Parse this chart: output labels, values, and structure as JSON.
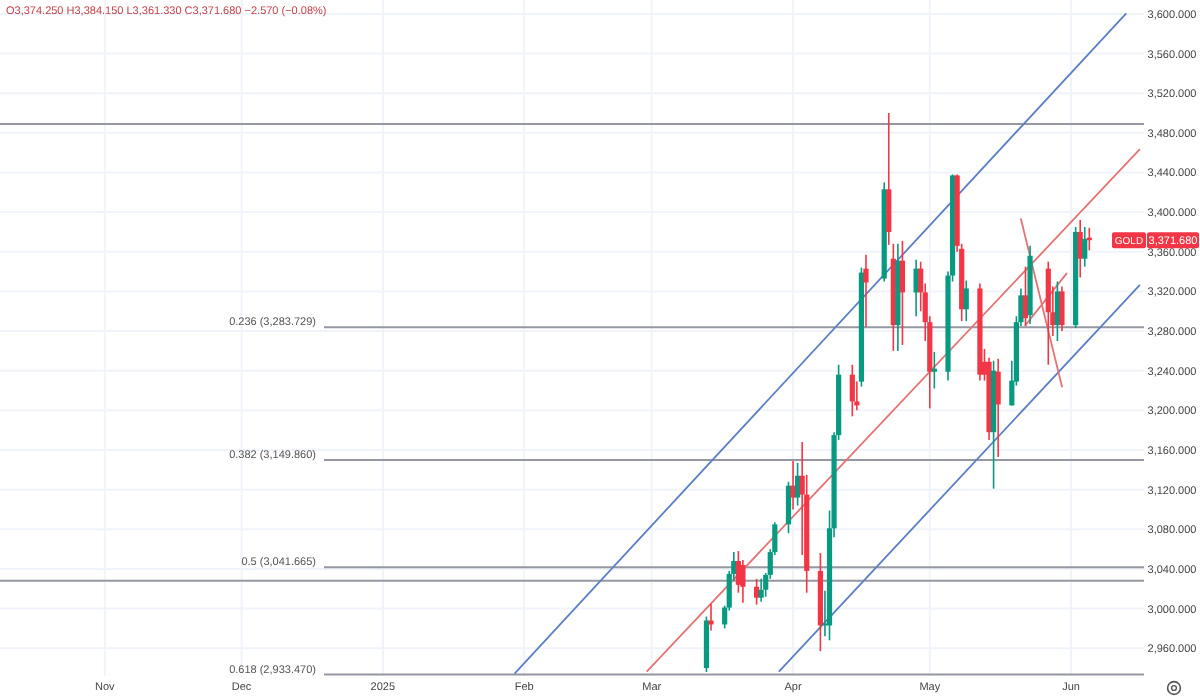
{
  "chart_data": {
    "type": "candlestick",
    "x": [
      "2025-03-13",
      "2025-03-14",
      "2025-03-17",
      "2025-03-18",
      "2025-03-19",
      "2025-03-20",
      "2025-03-21",
      "2025-03-24",
      "2025-03-25",
      "2025-03-26",
      "2025-03-27",
      "2025-03-28",
      "2025-03-31",
      "2025-04-01",
      "2025-04-02",
      "2025-04-03",
      "2025-04-04",
      "2025-04-07",
      "2025-04-08",
      "2025-04-09",
      "2025-04-10",
      "2025-04-11",
      "2025-04-14",
      "2025-04-15",
      "2025-04-16",
      "2025-04-17",
      "2025-04-21",
      "2025-04-22",
      "2025-04-23",
      "2025-04-24",
      "2025-04-25",
      "2025-04-28",
      "2025-04-29",
      "2025-04-30",
      "2025-05-01",
      "2025-05-02",
      "2025-05-05",
      "2025-05-06",
      "2025-05-07",
      "2025-05-08",
      "2025-05-09",
      "2025-05-12",
      "2025-05-13",
      "2025-05-14",
      "2025-05-15",
      "2025-05-16",
      "2025-05-19",
      "2025-05-20",
      "2025-05-21",
      "2025-05-22",
      "2025-05-23",
      "2025-05-27",
      "2025-05-28",
      "2025-05-29",
      "2025-05-30",
      "2025-06-02",
      "2025-06-03",
      "2025-06-04",
      "2025-06-05"
    ],
    "ohlc": [
      [
        2940,
        2992,
        2936,
        2988
      ],
      [
        2988,
        3005,
        2978,
        2984
      ],
      [
        2984,
        3003,
        2980,
        3001
      ],
      [
        3001,
        3038,
        2998,
        3035
      ],
      [
        3035,
        3057,
        3028,
        3048
      ],
      [
        3048,
        3058,
        3016,
        3024
      ],
      [
        3044,
        3049,
        3006,
        3022
      ],
      [
        3022,
        3030,
        3004,
        3011
      ],
      [
        3011,
        3030,
        3007,
        3019
      ],
      [
        3019,
        3036,
        3012,
        3034
      ],
      [
        3034,
        3060,
        3030,
        3057
      ],
      [
        3057,
        3087,
        3054,
        3085
      ],
      [
        3085,
        3128,
        3076,
        3124
      ],
      [
        3124,
        3149,
        3100,
        3112
      ],
      [
        3112,
        3147,
        3104,
        3134
      ],
      [
        3134,
        3168,
        3054,
        3115
      ],
      [
        3115,
        3135,
        3016,
        3038
      ],
      [
        3038,
        3056,
        2957,
        2983
      ],
      [
        2983,
        3018,
        2972,
        2985
      ],
      [
        2983,
        3099,
        2968,
        3081
      ],
      [
        3081,
        3178,
        3072,
        3175
      ],
      [
        3175,
        3246,
        3170,
        3236
      ],
      [
        3236,
        3246,
        3194,
        3209
      ],
      [
        3209,
        3229,
        3200,
        3205
      ],
      [
        3229,
        3344,
        3224,
        3339
      ],
      [
        3343,
        3357,
        3284,
        3329
      ],
      [
        3333,
        3430,
        3330,
        3423
      ],
      [
        3423,
        3500,
        3367,
        3380
      ],
      [
        3353,
        3368,
        3260,
        3286
      ],
      [
        3286,
        3368,
        3260,
        3351
      ],
      [
        3351,
        3371,
        3266,
        3319
      ],
      [
        3319,
        3352,
        3295,
        3343
      ],
      [
        3343,
        3350,
        3300,
        3319
      ],
      [
        3319,
        3328,
        3270,
        3289
      ],
      [
        3289,
        3295,
        3202,
        3239
      ],
      [
        3239,
        3259,
        3222,
        3242
      ],
      [
        3239,
        3340,
        3230,
        3336
      ],
      [
        3336,
        3438,
        3330,
        3437
      ],
      [
        3437,
        3438,
        3360,
        3366
      ],
      [
        3363,
        3368,
        3290,
        3302
      ],
      [
        3302,
        3331,
        3290,
        3323
      ],
      [
        3323,
        3328,
        3230,
        3236
      ],
      [
        3249,
        3262,
        3230,
        3236
      ],
      [
        3249,
        3253,
        3170,
        3178
      ],
      [
        3178,
        3250,
        3121,
        3240
      ],
      [
        3239,
        3252,
        3153,
        3206
      ],
      [
        3205,
        3250,
        3205,
        3230
      ],
      [
        3229,
        3295,
        3225,
        3289
      ],
      [
        3289,
        3323,
        3285,
        3316
      ],
      [
        3316,
        3345,
        3285,
        3293
      ],
      [
        3296,
        3366,
        3287,
        3356
      ],
      [
        3343,
        3350,
        3246,
        3299
      ],
      [
        3299,
        3325,
        3275,
        3286
      ],
      [
        3286,
        3330,
        3270,
        3320
      ],
      [
        3320,
        3325,
        3280,
        3286
      ],
      [
        3286,
        3385,
        3283,
        3380
      ],
      [
        3380,
        3392,
        3334,
        3353
      ],
      [
        3353,
        3385,
        3345,
        3373
      ],
      [
        3374.25,
        3384.15,
        3361.33,
        3371.68
      ]
    ],
    "colors": [
      "#089981",
      "#f23645",
      "#089981",
      "#089981",
      "#089981",
      "#f23645",
      "#f23645",
      "#f23645",
      "#089981",
      "#089981",
      "#089981",
      "#089981",
      "#089981",
      "#f23645",
      "#089981",
      "#f23645",
      "#f23645",
      "#f23645",
      "#089981",
      "#089981",
      "#089981",
      "#089981",
      "#f23645",
      "#f23645",
      "#089981",
      "#f23645",
      "#089981",
      "#f23645",
      "#f23645",
      "#089981",
      "#f23645",
      "#089981",
      "#f23645",
      "#f23645",
      "#f23645",
      "#089981",
      "#089981",
      "#089981",
      "#f23645",
      "#f23645",
      "#089981",
      "#f23645",
      "#f23645",
      "#f23645",
      "#089981",
      "#f23645",
      "#089981",
      "#089981",
      "#089981",
      "#f23645",
      "#089981",
      "#f23645",
      "#f23645",
      "#089981",
      "#f23645",
      "#089981",
      "#f23645",
      "#089981",
      "#f23645"
    ],
    "series": [
      {
        "type": "line",
        "color": "#5b7fc7",
        "x": [
          "2025-01-30",
          "2025-06-13"
        ],
        "values": [
          2935,
          3600
        ]
      },
      {
        "type": "line",
        "color": "#e57373",
        "x": [
          "2025-02-28",
          "2025-06-16"
        ],
        "values": [
          2937,
          3463
        ]
      },
      {
        "type": "line",
        "color": "#5b7fc7",
        "x": [
          "2025-03-29",
          "2025-06-16"
        ],
        "values": [
          2937,
          3326
        ]
      },
      {
        "type": "line",
        "color": "#e57373",
        "x": [
          "2025-05-21",
          "2025-05-30"
        ],
        "values": [
          3393,
          3224
        ]
      },
      {
        "type": "line",
        "color": "#e57373",
        "x": [
          "2025-05-22",
          "2025-05-31"
        ],
        "values": [
          3286,
          3338
        ]
      }
    ],
    "ref_lines": [
      {
        "axis": "y",
        "value": 3489,
        "color": "#9598a1"
      },
      {
        "axis": "y",
        "value": 3283.729,
        "label": "0.236 (3,283.729)",
        "color": "#9598a1"
      },
      {
        "axis": "y",
        "value": 3149.86,
        "label": "0.382 (3,149.860)",
        "color": "#9598a1"
      },
      {
        "axis": "y",
        "value": 3041.665,
        "label": "0.5 (3,041.665)",
        "color": "#9598a1"
      },
      {
        "axis": "y",
        "value": 3028,
        "color": "#9598a1"
      },
      {
        "axis": "y",
        "value": 2933.47,
        "label": "0.618 (2,933.470)",
        "color": "#9598a1"
      }
    ],
    "annotations": [
      "O3,374.250 H3,384.150 L3,361.330 C3,371.680 −2.570 (−0.08%)",
      "GOLD",
      "3,371.680"
    ],
    "xlim": [
      "2024-10-09",
      "2025-06-17"
    ],
    "xticks": [
      {
        "value": "2024-11-01",
        "label": "Nov"
      },
      {
        "value": "2024-12-01",
        "label": "Dec"
      },
      {
        "value": "2025-01-01",
        "label": "2025"
      },
      {
        "value": "2025-02-01",
        "label": "Feb"
      },
      {
        "value": "2025-03-01",
        "label": "Mar"
      },
      {
        "value": "2025-04-01",
        "label": "Apr"
      },
      {
        "value": "2025-05-01",
        "label": "May"
      },
      {
        "value": "2025-06-01",
        "label": "Jun"
      }
    ],
    "ylim": [
      2932,
      3614
    ],
    "yticks": [
      {
        "value": 2960,
        "label": "2,960.000"
      },
      {
        "value": 3000,
        "label": "3,000.000"
      },
      {
        "value": 3040,
        "label": "3,040.000"
      },
      {
        "value": 3080,
        "label": "3,080.000"
      },
      {
        "value": 3120,
        "label": "3,120.000"
      },
      {
        "value": 3160,
        "label": "3,160.000"
      },
      {
        "value": 3200,
        "label": "3,200.000"
      },
      {
        "value": 3240,
        "label": "3,240.000"
      },
      {
        "value": 3280,
        "label": "3,280.000"
      },
      {
        "value": 3320,
        "label": "3,320.000"
      },
      {
        "value": 3360,
        "label": "3,360.000"
      },
      {
        "value": 3400,
        "label": "3,400.000"
      },
      {
        "value": 3440,
        "label": "3,440.000"
      },
      {
        "value": 3480,
        "label": "3,480.000"
      },
      {
        "value": 3520,
        "label": "3,520.000"
      },
      {
        "value": 3560,
        "label": "3,560.000"
      },
      {
        "value": 3600,
        "label": "3,600.000"
      }
    ],
    "grid": true
  }
}
